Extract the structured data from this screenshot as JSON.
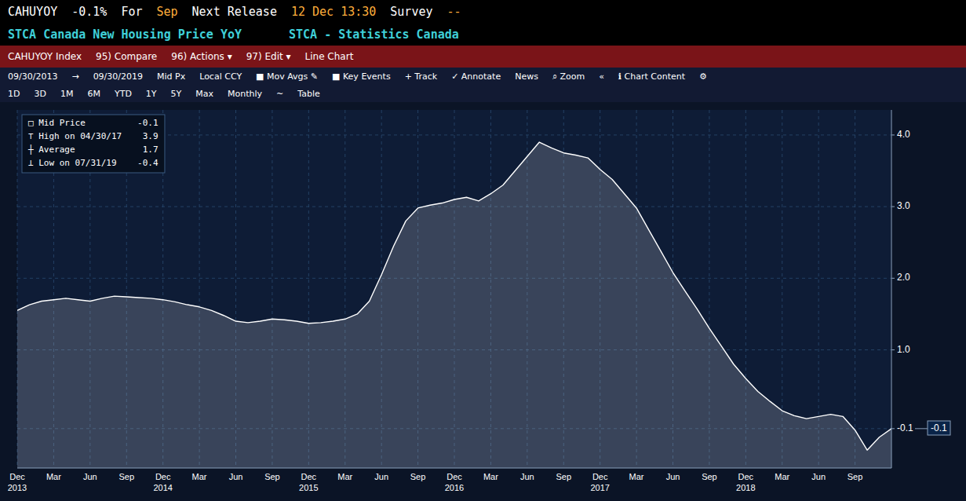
{
  "chart_data": {
    "type": "area",
    "title": "STCA Canada New Housing Price YoY",
    "subtitle": "STCA - Statistics Canada",
    "color": "#FFFFFF",
    "grid": true,
    "categories": [
      "Dec 2013",
      null,
      null,
      "Mar",
      null,
      null,
      "Jun",
      null,
      null,
      "Sep",
      null,
      null,
      "Dec 2014",
      null,
      null,
      "Mar",
      null,
      null,
      "Jun",
      null,
      null,
      "Sep",
      null,
      null,
      "Dec 2015",
      null,
      null,
      "Mar",
      null,
      null,
      "Jun",
      null,
      null,
      "Sep",
      null,
      null,
      "Dec 2016",
      null,
      null,
      "Mar",
      null,
      null,
      "Jun",
      null,
      null,
      "Sep",
      null,
      null,
      "Dec 2017",
      null,
      null,
      "Mar",
      null,
      null,
      "Jun",
      null,
      null,
      "Sep",
      null,
      null,
      "Dec 2018",
      null,
      null,
      "Mar",
      null,
      null,
      "Jun",
      null,
      null,
      "Sep",
      null,
      null,
      null
    ],
    "values": [
      1.55,
      1.63,
      1.68,
      1.7,
      1.72,
      1.7,
      1.68,
      1.72,
      1.75,
      1.74,
      1.73,
      1.72,
      1.7,
      1.67,
      1.63,
      1.6,
      1.55,
      1.48,
      1.4,
      1.38,
      1.4,
      1.43,
      1.42,
      1.4,
      1.37,
      1.38,
      1.4,
      1.43,
      1.5,
      1.68,
      2.05,
      2.45,
      2.8,
      2.98,
      3.02,
      3.05,
      3.1,
      3.13,
      3.08,
      3.18,
      3.3,
      3.5,
      3.7,
      3.9,
      3.82,
      3.75,
      3.72,
      3.68,
      3.52,
      3.38,
      3.18,
      2.98,
      2.68,
      2.38,
      2.08,
      1.82,
      1.57,
      1.3,
      1.05,
      0.8,
      0.6,
      0.42,
      0.28,
      0.15,
      0.08,
      0.04,
      0.07,
      0.1,
      0.07,
      -0.12,
      -0.4,
      -0.22,
      -0.1
    ],
    "ylim": [
      -0.65,
      4.35
    ],
    "yticks": [
      -0.1,
      {
        "value": 1.0,
        "label": "1.0"
      },
      {
        "value": 2.0,
        "label": "2.0"
      },
      {
        "value": 3.0,
        "label": "3.0"
      },
      {
        "value": 4.0,
        "label": "4.0"
      }
    ],
    "annotations": [
      [
        "CAHUYOY",
        "-0.1%",
        "For",
        "Sep",
        "Next Release",
        "12 Dec 13:30",
        "Survey",
        "--"
      ],
      [
        "CAHUYOY Index",
        "95) Compare",
        "96) Actions ▾",
        "97) Edit ▾",
        "Line Chart"
      ],
      [
        "09/30/2013",
        "→",
        "09/30/2019",
        "Mid Px",
        "Local CCY",
        "■ Mov Avgs ✎",
        "■ Key Events",
        "+ Track",
        "✓ Annotate",
        "News",
        "⌕ Zoom",
        "«",
        "ℹ Chart Content",
        "⚙"
      ],
      [
        "1D",
        "3D",
        "1M",
        "6M",
        "YTD",
        "1Y",
        "5Y",
        "Max",
        "Monthly",
        "~",
        "Table"
      ],
      [
        "□ Mid Price          -0.1",
        "⊤ High on 04/30/17    3.9",
        "┼ Average             1.7",
        "⊥ Low on 07/31/19    -0.4"
      ],
      {
        "text": "-0.1",
        "y": -0.1
      }
    ]
  }
}
